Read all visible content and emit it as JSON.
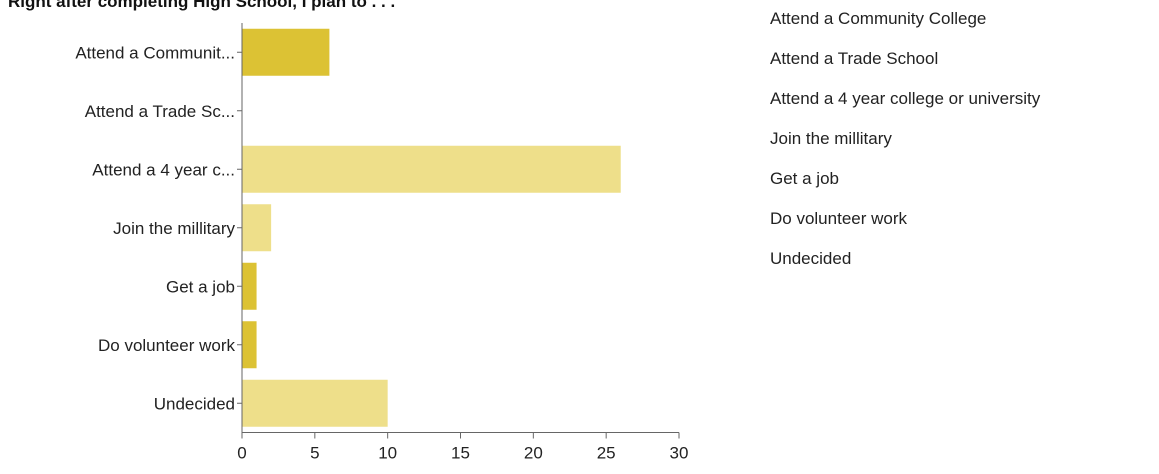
{
  "title": "Right after completing High School, I plan to . . .",
  "chart_data": {
    "type": "bar",
    "orientation": "horizontal",
    "categories": [
      "Attend a Communit...",
      "Attend a Trade Sc...",
      "Attend a 4 year c...",
      "Join the millitary",
      "Get a job",
      "Do volunteer work",
      "Undecided"
    ],
    "values": [
      6,
      0,
      26,
      2,
      1,
      1,
      10
    ],
    "xlim": [
      0,
      30
    ],
    "xticks": [
      "0",
      "5",
      "10",
      "15",
      "20",
      "25",
      "30"
    ],
    "bar_colors": [
      "#dcc234",
      "#dcc234",
      "#eedf8a",
      "#eedf8a",
      "#dcc234",
      "#dcc234",
      "#eedf8a"
    ],
    "legend_position": "right"
  },
  "legend": [
    "Attend a Community College",
    "Attend a Trade School",
    "Attend a 4 year college or university",
    "Join the millitary",
    "Get a job",
    "Do volunteer work",
    "Undecided"
  ]
}
